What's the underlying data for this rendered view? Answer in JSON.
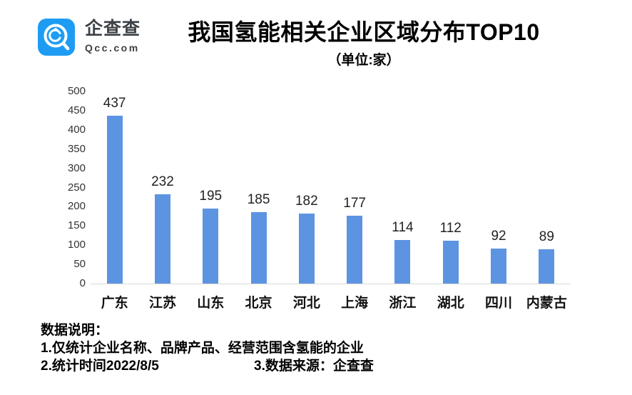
{
  "logo": {
    "name": "企查查",
    "domain": "Qcc.com",
    "brand_color": "#1E9CF3"
  },
  "header": {
    "title": "我国氢能相关企业区域分布TOP10",
    "subtitle": "（单位:家）"
  },
  "chart_data": {
    "type": "bar",
    "title": "我国氢能相关企业区域分布TOP10",
    "unit_label": "（单位:家）",
    "categories": [
      "广东",
      "江苏",
      "山东",
      "北京",
      "河北",
      "上海",
      "浙江",
      "湖北",
      "四川",
      "内蒙古"
    ],
    "values": [
      437,
      232,
      195,
      185,
      182,
      177,
      114,
      112,
      92,
      89
    ],
    "ylim": [
      0,
      500
    ],
    "ytick_step": 50,
    "grid": false,
    "legend": "none",
    "bar_color": "#5C94E2",
    "baseline_color": "#D9D9D9"
  },
  "footer": {
    "heading": "数据说明：",
    "note1": "1.仅统计企业名称、品牌产品、经营范围含氢能的企业",
    "note2": "2.统计时间2022/8/5",
    "note3": "3.数据来源：企查查"
  }
}
